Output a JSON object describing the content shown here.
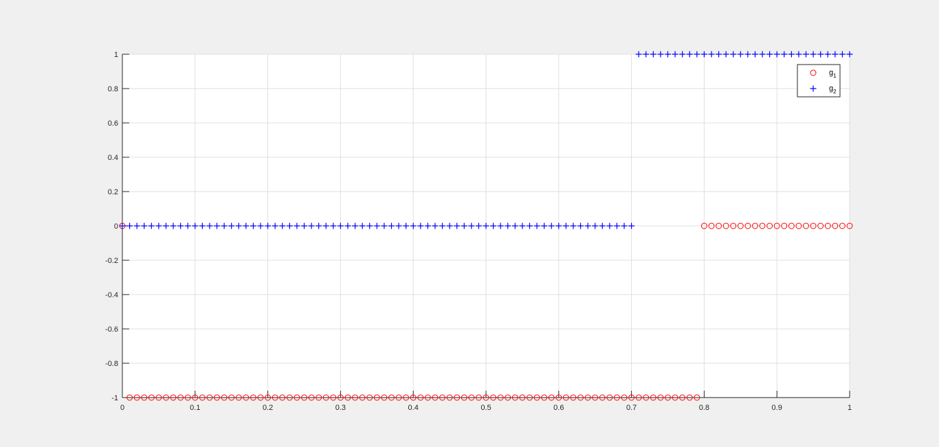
{
  "chart_data": {
    "type": "scatter",
    "title": "",
    "xlabel": "",
    "ylabel": "",
    "xlim": [
      0,
      1
    ],
    "ylim": [
      -1,
      1
    ],
    "grid": true,
    "legend_position": "top-right",
    "x_ticks": [
      0,
      0.1,
      0.2,
      0.3,
      0.4,
      0.5,
      0.6,
      0.7,
      0.8,
      0.9,
      1
    ],
    "x_tick_labels": [
      "0",
      "0.1",
      "0.2",
      "0.3",
      "0.4",
      "0.5",
      "0.6",
      "0.7",
      "0.8",
      "0.9",
      "1"
    ],
    "y_ticks": [
      -1,
      -0.8,
      -0.6,
      -0.4,
      -0.2,
      0,
      0.2,
      0.4,
      0.6,
      0.8,
      1
    ],
    "y_tick_labels": [
      "-1",
      "-0.8",
      "-0.6",
      "-0.4",
      "-0.2",
      "0",
      "0.2",
      "0.4",
      "0.6",
      "0.8",
      "1"
    ],
    "x_step": 0.01,
    "series": [
      {
        "name": "g",
        "name_subscript": "1",
        "marker": "circle",
        "color": "#ff0000",
        "segments": [
          {
            "x_start": 0,
            "x_end": 0,
            "y": 0
          },
          {
            "x_start": 0.01,
            "x_end": 0.79,
            "y": -1
          },
          {
            "x_start": 0.8,
            "x_end": 1,
            "y": 0
          }
        ]
      },
      {
        "name": "g",
        "name_subscript": "2",
        "marker": "plus",
        "color": "#0000ff",
        "segments": [
          {
            "x_start": 0,
            "x_end": 0.7,
            "y": 0
          },
          {
            "x_start": 0.71,
            "x_end": 1,
            "y": 1
          }
        ]
      }
    ]
  }
}
